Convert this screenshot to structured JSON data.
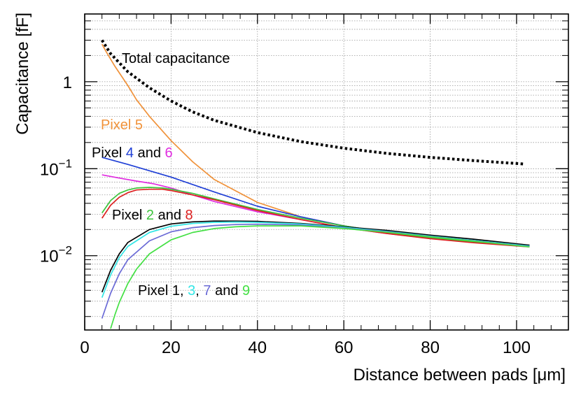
{
  "chart_data": {
    "type": "line",
    "title": "",
    "xlabel": "Distance between pads [μm]",
    "ylabel": "Capacitance [fF]",
    "xscale": "linear",
    "yscale": "log",
    "xlim": [
      0,
      112
    ],
    "ylim": [
      0.0014,
      6
    ],
    "grid": true,
    "x_ticks": [
      0,
      20,
      40,
      60,
      80,
      100
    ],
    "x_tick_labels": [
      "0",
      "20",
      "40",
      "60",
      "80",
      "100"
    ],
    "y_ticks": [
      {
        "value": 0.01,
        "base": "10",
        "exp": "−2"
      },
      {
        "value": 0.1,
        "base": "10",
        "exp": "−1"
      },
      {
        "value": 1,
        "base": "1",
        "exp": ""
      }
    ],
    "series": [
      {
        "name": "Total capacitance",
        "color": "#000000",
        "style": "dotted",
        "x": [
          4,
          6,
          8,
          10,
          15,
          20,
          25,
          30,
          40,
          50,
          60,
          70,
          80,
          90,
          102
        ],
        "values": [
          3.0,
          2.1,
          1.65,
          1.3,
          0.85,
          0.6,
          0.45,
          0.36,
          0.26,
          0.205,
          0.172,
          0.15,
          0.135,
          0.124,
          0.113
        ]
      },
      {
        "name": "Pixel 5",
        "color": "#f0923a",
        "style": "solid",
        "x": [
          4,
          5,
          7,
          10,
          12,
          15,
          20,
          25,
          30,
          40,
          50,
          60,
          70,
          80,
          90,
          103
        ],
        "values": [
          2.7,
          2.2,
          1.5,
          0.9,
          0.62,
          0.4,
          0.21,
          0.12,
          0.075,
          0.041,
          0.028,
          0.022,
          0.0185,
          0.016,
          0.0145,
          0.013
        ]
      },
      {
        "name": "Pixel 4",
        "color": "#1f3fd6",
        "style": "solid",
        "x": [
          4,
          10,
          20,
          30,
          40,
          50,
          60,
          70,
          80,
          90,
          103
        ],
        "values": [
          0.135,
          0.112,
          0.08,
          0.054,
          0.037,
          0.028,
          0.022,
          0.0185,
          0.016,
          0.0145,
          0.0128
        ]
      },
      {
        "name": "Pixel 6",
        "color": "#e02ce0",
        "style": "solid",
        "x": [
          4,
          8,
          12,
          16,
          20,
          25,
          30,
          40,
          50,
          60,
          70,
          80,
          90,
          103
        ],
        "values": [
          0.085,
          0.078,
          0.072,
          0.067,
          0.06,
          0.05,
          0.042,
          0.032,
          0.026,
          0.021,
          0.018,
          0.0158,
          0.0142,
          0.0128
        ]
      },
      {
        "name": "Pixel 2",
        "color": "#3cc43c",
        "style": "solid",
        "x": [
          4,
          6,
          8,
          10,
          12,
          15,
          18,
          20,
          25,
          30,
          40,
          50,
          60,
          70,
          80,
          90,
          103
        ],
        "values": [
          0.031,
          0.043,
          0.052,
          0.057,
          0.06,
          0.061,
          0.06,
          0.058,
          0.052,
          0.045,
          0.034,
          0.027,
          0.022,
          0.0185,
          0.016,
          0.0143,
          0.0127
        ]
      },
      {
        "name": "Pixel 8",
        "color": "#dc2020",
        "style": "solid",
        "x": [
          4,
          6,
          8,
          10,
          12,
          15,
          18,
          20,
          25,
          30,
          40,
          50,
          60,
          70,
          80,
          90,
          103
        ],
        "values": [
          0.027,
          0.038,
          0.047,
          0.053,
          0.057,
          0.058,
          0.058,
          0.056,
          0.05,
          0.044,
          0.033,
          0.026,
          0.021,
          0.018,
          0.0157,
          0.0141,
          0.0126
        ]
      },
      {
        "name": "Pixel 1",
        "color": "#000000",
        "style": "solid",
        "x": [
          4,
          6,
          8,
          10,
          15,
          20,
          25,
          30,
          35,
          40,
          50,
          60,
          70,
          80,
          90,
          103
        ],
        "values": [
          0.0038,
          0.0068,
          0.0105,
          0.0142,
          0.02,
          0.0232,
          0.0245,
          0.025,
          0.025,
          0.0248,
          0.0235,
          0.0215,
          0.0195,
          0.0172,
          0.0155,
          0.0132
        ]
      },
      {
        "name": "Pixel 3",
        "color": "#33e6e6",
        "style": "solid",
        "x": [
          4,
          6,
          8,
          10,
          15,
          20,
          25,
          30,
          35,
          40,
          50,
          60,
          70,
          80,
          90,
          103
        ],
        "values": [
          0.0033,
          0.006,
          0.0095,
          0.0128,
          0.0185,
          0.0218,
          0.0235,
          0.0242,
          0.0244,
          0.0242,
          0.0232,
          0.0212,
          0.019,
          0.0168,
          0.015,
          0.0129
        ]
      },
      {
        "name": "Pixel 7",
        "color": "#6a6ad6",
        "style": "solid",
        "x": [
          4,
          6,
          8,
          10,
          15,
          20,
          25,
          30,
          35,
          40,
          50,
          60,
          70,
          80,
          90,
          103
        ],
        "values": [
          0.0019,
          0.0037,
          0.0062,
          0.009,
          0.0148,
          0.0188,
          0.021,
          0.0222,
          0.0228,
          0.023,
          0.0225,
          0.0208,
          0.0188,
          0.0166,
          0.0148,
          0.0127
        ]
      },
      {
        "name": "Pixel 9",
        "color": "#44e044",
        "style": "solid",
        "x": [
          6,
          7,
          8,
          10,
          12,
          15,
          20,
          25,
          30,
          35,
          40,
          50,
          60,
          70,
          80,
          90,
          103
        ],
        "values": [
          0.00145,
          0.0021,
          0.0029,
          0.0048,
          0.007,
          0.0105,
          0.0152,
          0.0185,
          0.0205,
          0.0215,
          0.022,
          0.022,
          0.0205,
          0.0186,
          0.0165,
          0.0147,
          0.0126
        ]
      }
    ],
    "annotations": [
      {
        "id": "total",
        "segments": [
          {
            "text": "Total capacitance",
            "color": "#000000"
          }
        ]
      },
      {
        "id": "pixel5",
        "segments": [
          {
            "text": "Pixel 5",
            "color": "#f0923a"
          }
        ]
      },
      {
        "id": "pixel46",
        "segments": [
          {
            "text": "Pixel ",
            "color": "#000000"
          },
          {
            "text": "4",
            "color": "#1f3fd6"
          },
          {
            "text": " and ",
            "color": "#000000"
          },
          {
            "text": "6",
            "color": "#e02ce0"
          }
        ]
      },
      {
        "id": "pixel28",
        "segments": [
          {
            "text": "Pixel ",
            "color": "#000000"
          },
          {
            "text": "2",
            "color": "#3cc43c"
          },
          {
            "text": " and ",
            "color": "#000000"
          },
          {
            "text": "8",
            "color": "#dc2020"
          }
        ]
      },
      {
        "id": "pixel1379",
        "segments": [
          {
            "text": "Pixel 1, ",
            "color": "#000000"
          },
          {
            "text": "3",
            "color": "#33e6e6"
          },
          {
            "text": ", ",
            "color": "#000000"
          },
          {
            "text": "7",
            "color": "#6a6ad6"
          },
          {
            "text": " and ",
            "color": "#000000"
          },
          {
            "text": "9",
            "color": "#44e044"
          }
        ]
      }
    ]
  }
}
